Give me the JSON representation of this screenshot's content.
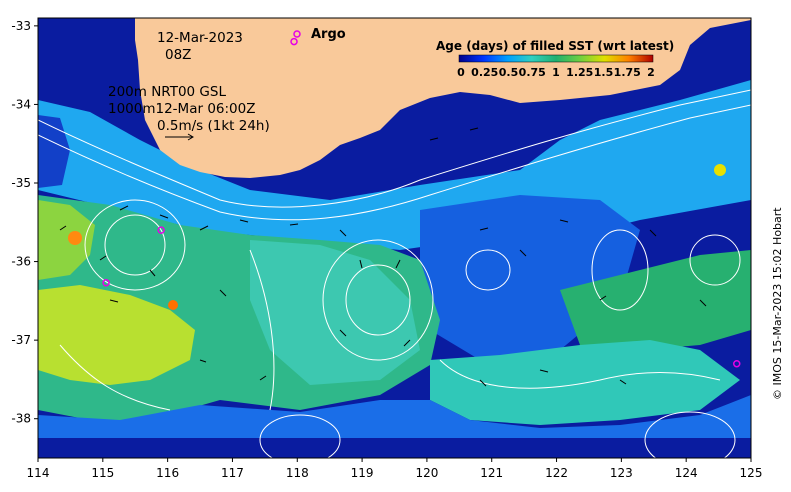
{
  "map": {
    "date": "12-Mar-2023",
    "time": "08Z",
    "isobath_line_1": "200m  NRT00 GSL",
    "isobath_line_2": "1000m12-Mar 06:00Z",
    "velocity_scale": "0.5m/s (1kt 24h)",
    "argo_label": "Argo",
    "credit": "© IMOS 15-Mar-2023 15:02 Hobart",
    "x_ticks": [
      "114",
      "115",
      "116",
      "117",
      "118",
      "119",
      "120",
      "121",
      "122",
      "123",
      "124",
      "125"
    ],
    "y_ticks": [
      "-33",
      "-34",
      "-35",
      "-36",
      "-37",
      "-38"
    ],
    "x_tick_values": [
      114,
      115,
      116,
      117,
      118,
      119,
      120,
      121,
      122,
      123,
      124,
      125
    ],
    "y_tick_values": [
      -33,
      -34,
      -35,
      -36,
      -37,
      -38
    ],
    "lon_range": [
      114,
      125
    ],
    "lat_range": [
      -38.5,
      -32.9
    ],
    "land_color": "#f9c99a",
    "contour_color": "#ffffff",
    "argo_color": "#e600e6",
    "argo_floats": [
      {
        "lon": 117.95,
        "lat": -33.2
      },
      {
        "lon": 115.9,
        "lat": -35.6
      },
      {
        "lon": 115.05,
        "lat": -36.27
      },
      {
        "lon": 124.78,
        "lat": -37.3
      }
    ]
  },
  "colorbar": {
    "title": "Age (days) of filled SST (wrt latest)",
    "ticks": [
      "0",
      "0.25",
      "0.5",
      "0.75",
      "1",
      "1.25",
      "1.5",
      "1.75",
      "2"
    ],
    "range": [
      0,
      2
    ],
    "colors": [
      "#00008b",
      "#0033ff",
      "#00a0ff",
      "#30d0c0",
      "#20b070",
      "#70d040",
      "#e0e000",
      "#ff8000",
      "#b00000"
    ]
  }
}
